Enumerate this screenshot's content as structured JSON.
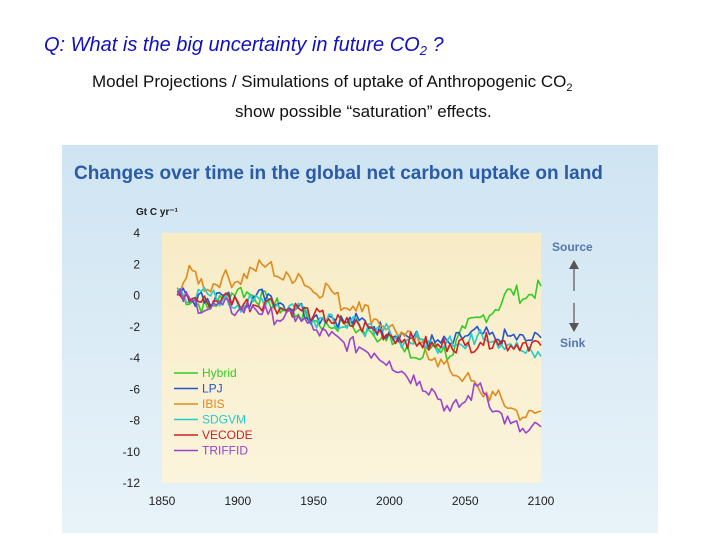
{
  "slide": {
    "question_prefix": "Q:  What is the big uncertainty in future CO",
    "question_sub": "2",
    "question_suffix": " ?",
    "subtitle_line1_prefix": "Model Projections / Simulations of uptake of Anthropogenic CO",
    "subtitle_line1_sub": "2",
    "subtitle_line2": "show possible “saturation” effects."
  },
  "chart_data": {
    "type": "line",
    "title": "Changes over time in the global net carbon uptake on land",
    "ylabel": "Gt C yr⁻¹",
    "xlabel": "",
    "xlim": [
      1850,
      2100
    ],
    "ylim": [
      -12,
      4
    ],
    "xticks": [
      1850,
      1900,
      1950,
      2000,
      2050,
      2100
    ],
    "yticks": [
      4,
      2,
      0,
      -2,
      -4,
      -6,
      -8,
      -10,
      -12
    ],
    "annotations": {
      "source": "Source",
      "sink": "Sink"
    },
    "series": [
      {
        "name": "Hybrid",
        "color": "#33cc22",
        "x": [
          1860,
          1870,
          1880,
          1890,
          1900,
          1910,
          1920,
          1930,
          1940,
          1950,
          1960,
          1970,
          1980,
          1990,
          2000,
          2010,
          2020,
          2030,
          2040,
          2050,
          2060,
          2070,
          2080,
          2090,
          2100
        ],
        "y": [
          0.2,
          -0.4,
          -0.8,
          -0.2,
          0.4,
          0.0,
          -0.3,
          -0.9,
          -1.2,
          -1.6,
          -2.0,
          -1.7,
          -2.2,
          -2.6,
          -2.4,
          -3.6,
          -4.1,
          -3.0,
          -3.9,
          -2.1,
          -1.4,
          -0.9,
          0.4,
          -0.2,
          0.6
        ]
      },
      {
        "name": "LPJ",
        "color": "#2255cc",
        "x": [
          1860,
          1870,
          1880,
          1890,
          1900,
          1910,
          1920,
          1930,
          1940,
          1950,
          1960,
          1970,
          1980,
          1990,
          2000,
          2010,
          2020,
          2030,
          2040,
          2050,
          2060,
          2070,
          2080,
          2090,
          2100
        ],
        "y": [
          0.3,
          -0.3,
          -0.2,
          0.0,
          -0.5,
          -0.1,
          0.1,
          -0.6,
          -0.7,
          -1.4,
          -1.3,
          -1.7,
          -1.6,
          -2.0,
          -2.3,
          -2.5,
          -2.8,
          -3.0,
          -3.1,
          -2.6,
          -2.4,
          -2.8,
          -2.6,
          -2.9,
          -2.7
        ]
      },
      {
        "name": "IBIS",
        "color": "#e08a1e",
        "x": [
          1860,
          1870,
          1880,
          1890,
          1900,
          1910,
          1920,
          1930,
          1940,
          1950,
          1960,
          1970,
          1980,
          1990,
          2000,
          2010,
          2020,
          2030,
          2040,
          2050,
          2060,
          2070,
          2080,
          2090,
          2100
        ],
        "y": [
          0.5,
          1.6,
          0.4,
          1.2,
          0.9,
          1.7,
          2.0,
          1.0,
          1.4,
          0.2,
          0.6,
          -0.8,
          -0.4,
          -1.5,
          -2.0,
          -2.6,
          -3.1,
          -4.0,
          -4.8,
          -5.2,
          -6.2,
          -6.4,
          -7.2,
          -7.8,
          -7.4
        ]
      },
      {
        "name": "SDGVM",
        "color": "#22cccc",
        "x": [
          1860,
          1870,
          1880,
          1890,
          1900,
          1910,
          1920,
          1930,
          1940,
          1950,
          1960,
          1970,
          1980,
          1990,
          2000,
          2010,
          2020,
          2030,
          2040,
          2050,
          2060,
          2070,
          2080,
          2090,
          2100
        ],
        "y": [
          0.4,
          -0.2,
          0.1,
          -0.3,
          -0.6,
          -0.4,
          -0.2,
          -0.8,
          -0.5,
          -1.6,
          -1.2,
          -2.0,
          -1.8,
          -2.5,
          -2.2,
          -3.0,
          -2.8,
          -3.3,
          -2.6,
          -3.4,
          -2.2,
          -2.9,
          -3.1,
          -3.7,
          -3.9
        ]
      },
      {
        "name": "VECODE",
        "color": "#cc2222",
        "x": [
          1860,
          1870,
          1880,
          1890,
          1900,
          1910,
          1920,
          1930,
          1940,
          1950,
          1960,
          1970,
          1980,
          1990,
          2000,
          2010,
          2020,
          2030,
          2040,
          2050,
          2060,
          2070,
          2080,
          2090,
          2100
        ],
        "y": [
          0.1,
          -0.2,
          -0.5,
          -0.1,
          -0.4,
          -0.6,
          -0.3,
          -0.9,
          -0.8,
          -1.3,
          -1.5,
          -1.8,
          -1.9,
          -2.2,
          -2.5,
          -2.8,
          -3.0,
          -3.3,
          -3.1,
          -3.2,
          -3.0,
          -2.8,
          -3.2,
          -3.0,
          -3.2
        ]
      },
      {
        "name": "TRIFFID",
        "color": "#9944cc",
        "x": [
          1860,
          1870,
          1880,
          1890,
          1900,
          1910,
          1920,
          1930,
          1940,
          1950,
          1960,
          1970,
          1980,
          1990,
          2000,
          2010,
          2020,
          2030,
          2040,
          2050,
          2060,
          2070,
          2080,
          2090,
          2100
        ],
        "y": [
          0.0,
          -0.4,
          -0.9,
          -0.6,
          -1.0,
          -0.7,
          -1.2,
          -1.5,
          -1.3,
          -2.2,
          -2.6,
          -3.0,
          -3.3,
          -3.7,
          -4.2,
          -5.0,
          -5.5,
          -6.2,
          -7.4,
          -6.8,
          -5.6,
          -7.4,
          -8.2,
          -8.8,
          -8.4
        ]
      }
    ]
  }
}
